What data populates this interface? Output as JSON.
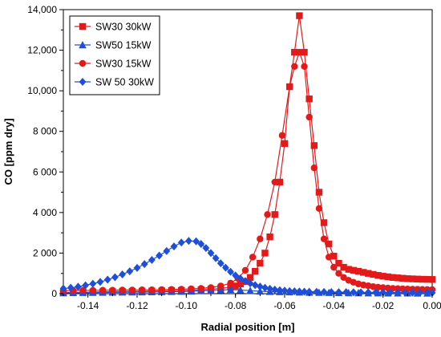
{
  "chart_data": {
    "type": "line",
    "title": "",
    "xlabel": "Radial position [m]",
    "ylabel": "CO [ppm dry]",
    "xlim": [
      -0.15,
      0.0
    ],
    "ylim": [
      0,
      14000
    ],
    "xticks": [
      -0.14,
      -0.12,
      -0.1,
      -0.08,
      -0.06,
      -0.04,
      -0.02,
      0.0
    ],
    "xtick_labels": [
      "-0.14",
      "-0.12",
      "-0.10",
      "-0.08",
      "-0.06",
      "-0.04",
      "-0.02",
      "0.00"
    ],
    "yticks": [
      0,
      2000,
      4000,
      6000,
      8000,
      10000,
      12000,
      14000
    ],
    "ytick_labels": [
      "0",
      "2 000",
      "4 000",
      "6 000",
      "8 000",
      "10,000",
      "12,000",
      "14,000"
    ],
    "grid": false,
    "legend_position": "top-left",
    "series": [
      {
        "name": "SW30 30kW",
        "color": "#e41a1a",
        "marker": "square",
        "x": [
          -0.15,
          -0.146,
          -0.142,
          -0.138,
          -0.134,
          -0.13,
          -0.126,
          -0.122,
          -0.118,
          -0.114,
          -0.11,
          -0.106,
          -0.102,
          -0.098,
          -0.094,
          -0.09,
          -0.086,
          -0.082,
          -0.08,
          -0.078,
          -0.076,
          -0.074,
          -0.072,
          -0.07,
          -0.068,
          -0.066,
          -0.064,
          -0.062,
          -0.06,
          -0.058,
          -0.056,
          -0.054,
          -0.052,
          -0.05,
          -0.048,
          -0.046,
          -0.044,
          -0.042,
          -0.04,
          -0.038,
          -0.036,
          -0.034,
          -0.032,
          -0.03,
          -0.028,
          -0.026,
          -0.024,
          -0.022,
          -0.02,
          -0.018,
          -0.016,
          -0.014,
          -0.012,
          -0.01,
          -0.008,
          -0.006,
          -0.004,
          -0.002,
          0.0
        ],
        "values": [
          50,
          60,
          70,
          80,
          90,
          100,
          105,
          110,
          120,
          130,
          140,
          150,
          160,
          170,
          190,
          220,
          260,
          320,
          380,
          480,
          600,
          800,
          1100,
          1500,
          2000,
          2800,
          3900,
          5500,
          7400,
          10200,
          11900,
          13700,
          11900,
          9600,
          7300,
          5000,
          3500,
          2450,
          1850,
          1500,
          1300,
          1200,
          1150,
          1100,
          1050,
          1000,
          950,
          900,
          860,
          830,
          800,
          780,
          760,
          740,
          730,
          720,
          710,
          705,
          700
        ]
      },
      {
        "name": "SW50 15kW",
        "color": "#1f4fd8",
        "marker": "triangle",
        "x": [
          -0.15,
          -0.146,
          -0.142,
          -0.138,
          -0.134,
          -0.13,
          -0.126,
          -0.122,
          -0.118,
          -0.114,
          -0.11,
          -0.106,
          -0.102,
          -0.098,
          -0.094,
          -0.09,
          -0.086,
          -0.082,
          -0.078,
          -0.074,
          -0.07,
          -0.066,
          -0.062,
          -0.058,
          -0.054,
          -0.05,
          -0.046,
          -0.042,
          -0.038,
          -0.034,
          -0.03,
          -0.026,
          -0.022,
          -0.018,
          -0.014,
          -0.01,
          -0.006,
          -0.002
        ],
        "values": [
          40,
          45,
          50,
          55,
          60,
          65,
          70,
          75,
          80,
          85,
          90,
          100,
          110,
          120,
          140,
          160,
          180,
          200,
          180,
          150,
          120,
          100,
          90,
          80,
          70,
          60,
          55,
          50,
          45,
          40,
          38,
          35,
          32,
          30,
          28,
          26,
          24,
          22
        ]
      },
      {
        "name": "SW30 15kW",
        "color": "#e41a1a",
        "marker": "circle",
        "x": [
          -0.15,
          -0.146,
          -0.142,
          -0.138,
          -0.134,
          -0.13,
          -0.126,
          -0.122,
          -0.118,
          -0.114,
          -0.11,
          -0.106,
          -0.102,
          -0.098,
          -0.094,
          -0.09,
          -0.086,
          -0.082,
          -0.079,
          -0.076,
          -0.073,
          -0.07,
          -0.067,
          -0.064,
          -0.061,
          -0.058,
          -0.056,
          -0.054,
          -0.052,
          -0.05,
          -0.048,
          -0.046,
          -0.044,
          -0.042,
          -0.04,
          -0.038,
          -0.036,
          -0.034,
          -0.032,
          -0.03,
          -0.028,
          -0.026,
          -0.024,
          -0.022,
          -0.02,
          -0.018,
          -0.016,
          -0.014,
          -0.012,
          -0.01,
          -0.008,
          -0.006,
          -0.004,
          -0.002,
          0.0
        ],
        "values": [
          150,
          150,
          160,
          160,
          170,
          170,
          180,
          180,
          190,
          190,
          200,
          210,
          220,
          240,
          260,
          300,
          380,
          520,
          750,
          1150,
          1800,
          2700,
          3900,
          5500,
          7800,
          10200,
          11200,
          11900,
          11200,
          8700,
          6200,
          4200,
          2700,
          1800,
          1300,
          1000,
          800,
          660,
          560,
          480,
          430,
          390,
          350,
          320,
          300,
          280,
          260,
          250,
          240,
          230,
          220,
          215,
          210,
          205,
          200
        ]
      },
      {
        "name": "SW 50 30kW",
        "color": "#1f4fd8",
        "marker": "diamond",
        "x": [
          -0.15,
          -0.147,
          -0.144,
          -0.141,
          -0.138,
          -0.135,
          -0.132,
          -0.129,
          -0.126,
          -0.123,
          -0.12,
          -0.117,
          -0.114,
          -0.111,
          -0.108,
          -0.105,
          -0.102,
          -0.099,
          -0.096,
          -0.094,
          -0.092,
          -0.09,
          -0.088,
          -0.086,
          -0.084,
          -0.082,
          -0.08,
          -0.078,
          -0.076,
          -0.074,
          -0.072,
          -0.07,
          -0.068,
          -0.066,
          -0.064,
          -0.062,
          -0.06,
          -0.058,
          -0.056,
          -0.054,
          -0.052,
          -0.05,
          -0.047,
          -0.044,
          -0.041,
          -0.038,
          -0.035,
          -0.032,
          -0.029,
          -0.026,
          -0.023,
          -0.02,
          -0.017,
          -0.014,
          -0.011,
          -0.008,
          -0.005,
          -0.002,
          0.0
        ],
        "values": [
          250,
          290,
          340,
          410,
          490,
          580,
          690,
          810,
          950,
          1100,
          1270,
          1460,
          1660,
          1880,
          2100,
          2330,
          2520,
          2600,
          2580,
          2450,
          2250,
          2000,
          1750,
          1500,
          1280,
          1080,
          900,
          750,
          620,
          510,
          420,
          350,
          290,
          240,
          200,
          170,
          150,
          130,
          120,
          110,
          100,
          95,
          90,
          85,
          80,
          76,
          72,
          68,
          65,
          62,
          60,
          58,
          56,
          54,
          52,
          50,
          48,
          46,
          45
        ]
      }
    ]
  }
}
